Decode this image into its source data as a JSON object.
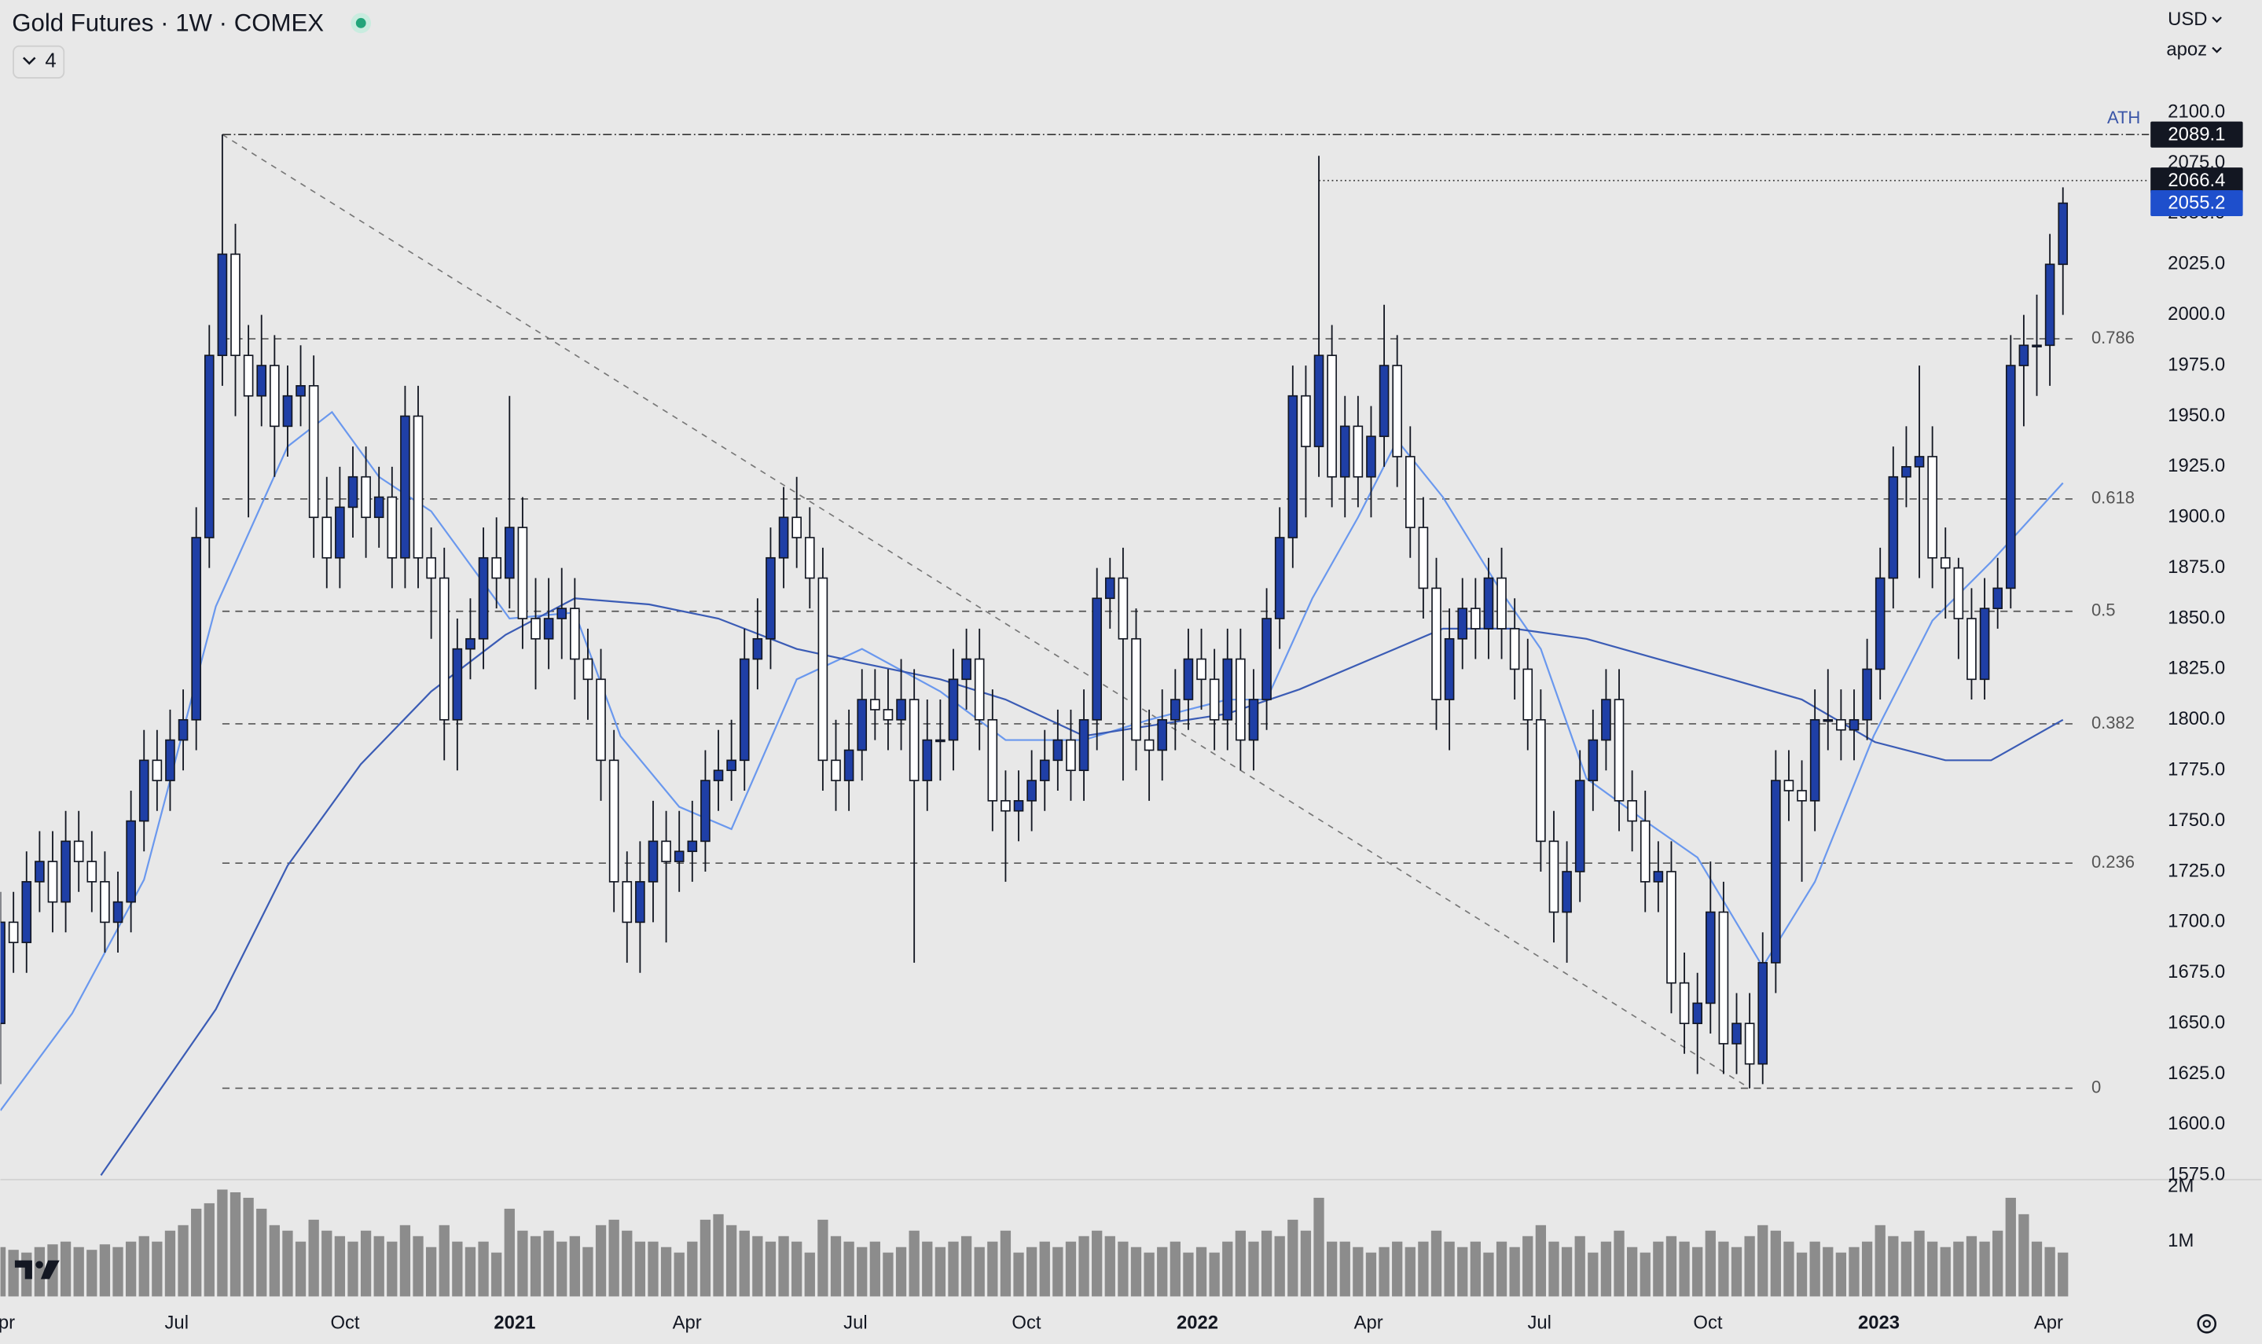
{
  "chart_data": {
    "type": "candlestick",
    "title": "Gold Futures · 1W · COMEX",
    "indicator_count": 4,
    "currency": "USD",
    "axis_menu": "apoz",
    "up_color": "#1f3fa6",
    "down_color": "#ffffff",
    "open": [
      1650,
      1700,
      1690,
      1720,
      1730,
      1710,
      1740,
      1730,
      1720,
      1700,
      1710,
      1750,
      1780,
      1770,
      1790,
      1800,
      1890,
      1980,
      2030,
      1980,
      1960,
      1975,
      1945,
      1960,
      1965,
      1900,
      1880,
      1905,
      1920,
      1900,
      1910,
      1880,
      1950,
      1880,
      1870,
      1800,
      1835,
      1840,
      1880,
      1870,
      1895,
      1850,
      1840,
      1850,
      1855,
      1830,
      1820,
      1780,
      1720,
      1700,
      1720,
      1740,
      1730,
      1735,
      1740,
      1770,
      1775,
      1780,
      1830,
      1840,
      1880,
      1900,
      1890,
      1870,
      1780,
      1770,
      1785,
      1810,
      1805,
      1800,
      1810,
      1770,
      1790,
      1790,
      1820,
      1830,
      1800,
      1760,
      1755,
      1760,
      1770,
      1780,
      1790,
      1775,
      1800,
      1860,
      1870,
      1840,
      1790,
      1785,
      1800,
      1810,
      1830,
      1820,
      1800,
      1830,
      1790,
      1810,
      1850,
      1890,
      1960,
      1935,
      1980,
      1920,
      1945,
      1920,
      1940,
      1975,
      1930,
      1895,
      1865,
      1810,
      1840,
      1855,
      1845,
      1870,
      1845,
      1825,
      1800,
      1740,
      1705,
      1725,
      1770,
      1790,
      1810,
      1760,
      1750,
      1720,
      1725,
      1670,
      1650,
      1660,
      1705,
      1640,
      1650,
      1630,
      1680,
      1770,
      1765,
      1760,
      1800,
      1800,
      1795,
      1800,
      1825,
      1870,
      1920,
      1925,
      1930,
      1880,
      1875,
      1850,
      1820,
      1855,
      1865,
      1975,
      1985,
      1985,
      2025
    ],
    "high": [
      1715,
      1715,
      1735,
      1745,
      1745,
      1755,
      1755,
      1745,
      1735,
      1725,
      1765,
      1795,
      1795,
      1805,
      1815,
      1905,
      1995,
      2089.1,
      2045,
      1995,
      2000,
      1990,
      1975,
      1985,
      1980,
      1920,
      1925,
      1935,
      1935,
      1925,
      1925,
      1965,
      1965,
      1895,
      1885,
      1850,
      1860,
      1895,
      1900,
      1960,
      1910,
      1870,
      1870,
      1875,
      1870,
      1845,
      1835,
      1795,
      1735,
      1740,
      1760,
      1755,
      1755,
      1760,
      1785,
      1795,
      1800,
      1845,
      1860,
      1895,
      1915,
      1920,
      1905,
      1885,
      1800,
      1805,
      1825,
      1825,
      1825,
      1830,
      1825,
      1810,
      1810,
      1835,
      1845,
      1845,
      1815,
      1775,
      1775,
      1785,
      1795,
      1805,
      1805,
      1815,
      1875,
      1880,
      1885,
      1855,
      1805,
      1815,
      1825,
      1845,
      1845,
      1835,
      1845,
      1845,
      1825,
      1865,
      1905,
      1975,
      1975,
      2078.6,
      1995,
      1960,
      1960,
      1955,
      2005,
      1990,
      1945,
      1910,
      1880,
      1855,
      1870,
      1870,
      1880,
      1885,
      1860,
      1840,
      1815,
      1755,
      1740,
      1785,
      1805,
      1825,
      1825,
      1775,
      1765,
      1740,
      1740,
      1685,
      1675,
      1730,
      1720,
      1665,
      1665,
      1695,
      1785,
      1785,
      1780,
      1815,
      1825,
      1815,
      1815,
      1840,
      1885,
      1935,
      1945,
      1975,
      1945,
      1895,
      1880,
      1865,
      1870,
      1880,
      1990,
      2000,
      2010,
      2040,
      2063
    ],
    "low": [
      1620,
      1675,
      1675,
      1705,
      1695,
      1695,
      1715,
      1705,
      1685,
      1685,
      1695,
      1735,
      1755,
      1755,
      1775,
      1785,
      1875,
      1965,
      1950,
      1900,
      1945,
      1920,
      1930,
      1945,
      1880,
      1865,
      1865,
      1890,
      1880,
      1885,
      1865,
      1865,
      1865,
      1840,
      1780,
      1775,
      1820,
      1825,
      1855,
      1855,
      1835,
      1815,
      1825,
      1830,
      1810,
      1800,
      1760,
      1705,
      1680,
      1675,
      1700,
      1690,
      1715,
      1720,
      1725,
      1755,
      1760,
      1765,
      1815,
      1825,
      1865,
      1875,
      1855,
      1765,
      1755,
      1755,
      1770,
      1790,
      1785,
      1785,
      1680,
      1755,
      1770,
      1775,
      1805,
      1785,
      1745,
      1720,
      1740,
      1745,
      1755,
      1765,
      1760,
      1760,
      1785,
      1845,
      1770,
      1775,
      1760,
      1770,
      1785,
      1795,
      1805,
      1785,
      1785,
      1775,
      1775,
      1795,
      1835,
      1875,
      1900,
      1920,
      1905,
      1900,
      1905,
      1900,
      1925,
      1915,
      1880,
      1850,
      1795,
      1785,
      1825,
      1830,
      1830,
      1830,
      1810,
      1785,
      1725,
      1690,
      1680,
      1710,
      1755,
      1775,
      1745,
      1735,
      1705,
      1705,
      1655,
      1635,
      1625,
      1645,
      1625,
      1625,
      1618,
      1620,
      1665,
      1750,
      1720,
      1745,
      1785,
      1780,
      1780,
      1790,
      1810,
      1855,
      1905,
      1870,
      1865,
      1850,
      1830,
      1810,
      1810,
      1845,
      1855,
      1945,
      1960,
      1965,
      2000
    ],
    "close": [
      1700,
      1690,
      1720,
      1730,
      1710,
      1740,
      1730,
      1720,
      1700,
      1710,
      1750,
      1780,
      1770,
      1790,
      1800,
      1890,
      1980,
      2030,
      1980,
      1960,
      1975,
      1945,
      1960,
      1965,
      1900,
      1880,
      1905,
      1920,
      1900,
      1910,
      1880,
      1950,
      1880,
      1870,
      1800,
      1835,
      1840,
      1880,
      1870,
      1895,
      1850,
      1840,
      1850,
      1855,
      1830,
      1820,
      1780,
      1720,
      1700,
      1720,
      1740,
      1730,
      1735,
      1740,
      1770,
      1775,
      1780,
      1830,
      1840,
      1880,
      1900,
      1890,
      1870,
      1780,
      1770,
      1785,
      1810,
      1805,
      1800,
      1810,
      1770,
      1790,
      1790,
      1820,
      1830,
      1800,
      1760,
      1755,
      1760,
      1770,
      1780,
      1790,
      1775,
      1800,
      1860,
      1870,
      1840,
      1790,
      1785,
      1800,
      1810,
      1830,
      1820,
      1800,
      1830,
      1790,
      1810,
      1850,
      1890,
      1960,
      1935,
      1980,
      1920,
      1945,
      1920,
      1940,
      1975,
      1930,
      1895,
      1865,
      1810,
      1840,
      1855,
      1845,
      1870,
      1845,
      1825,
      1800,
      1740,
      1705,
      1725,
      1770,
      1790,
      1810,
      1760,
      1750,
      1720,
      1725,
      1670,
      1650,
      1660,
      1705,
      1640,
      1650,
      1630,
      1680,
      1770,
      1765,
      1760,
      1800,
      1800,
      1795,
      1800,
      1825,
      1870,
      1920,
      1925,
      1930,
      1880,
      1875,
      1850,
      1820,
      1855,
      1865,
      1975,
      1985,
      1985,
      2025,
      2055.2
    ],
    "xlim": [
      0,
      164.6
    ],
    "xticks": [
      {
        "value": 0,
        "label": "Apr"
      },
      {
        "value": 13.5,
        "label": "Jul"
      },
      {
        "value": 26.4,
        "label": "Oct"
      },
      {
        "value": 39.4,
        "label": "2021"
      },
      {
        "value": 52.6,
        "label": "Apr"
      },
      {
        "value": 65.5,
        "label": "Jul"
      },
      {
        "value": 78.6,
        "label": "Oct"
      },
      {
        "value": 91.7,
        "label": "2022"
      },
      {
        "value": 104.8,
        "label": "Apr"
      },
      {
        "value": 117.9,
        "label": "Jul"
      },
      {
        "value": 130.8,
        "label": "Oct"
      },
      {
        "value": 143.9,
        "label": "2023"
      },
      {
        "value": 156.9,
        "label": "Apr"
      }
    ],
    "ylim": [
      1575,
      2100
    ],
    "yticks": [
      {
        "value": 1575,
        "label": "1575.0"
      },
      {
        "value": 1600,
        "label": "1600.0"
      },
      {
        "value": 1625,
        "label": "1625.0"
      },
      {
        "value": 1650,
        "label": "1650.0"
      },
      {
        "value": 1675,
        "label": "1675.0"
      },
      {
        "value": 1700,
        "label": "1700.0"
      },
      {
        "value": 1725,
        "label": "1725.0"
      },
      {
        "value": 1750,
        "label": "1750.0"
      },
      {
        "value": 1775,
        "label": "1775.0"
      },
      {
        "value": 1800,
        "label": "1800.0"
      },
      {
        "value": 1825,
        "label": "1825.0"
      },
      {
        "value": 1850,
        "label": "1850.0"
      },
      {
        "value": 1875,
        "label": "1875.0"
      },
      {
        "value": 1900,
        "label": "1900.0"
      },
      {
        "value": 1925,
        "label": "1925.0"
      },
      {
        "value": 1950,
        "label": "1950.0"
      },
      {
        "value": 1975,
        "label": "1975.0"
      },
      {
        "value": 2000,
        "label": "2000.0"
      },
      {
        "value": 2025,
        "label": "2025.0"
      },
      {
        "value": 2050,
        "label": "2050.0"
      },
      {
        "value": 2075,
        "label": "2075.0"
      },
      {
        "value": 2100,
        "label": "2100.0"
      }
    ],
    "volume": {
      "color": "#8c8c8c",
      "ylim": [
        0,
        2000000
      ],
      "yticks": [
        {
          "value": 1000000,
          "label": "1M"
        },
        {
          "value": 2000000,
          "label": "2M"
        }
      ],
      "values": [
        900000,
        850000,
        800000,
        900000,
        950000,
        1000000,
        900000,
        850000,
        950000,
        900000,
        1000000,
        1100000,
        1000000,
        1200000,
        1300000,
        1600000,
        1700000,
        1950000,
        1900000,
        1800000,
        1600000,
        1300000,
        1200000,
        1000000,
        1400000,
        1200000,
        1100000,
        1000000,
        1200000,
        1100000,
        1000000,
        1300000,
        1100000,
        900000,
        1300000,
        1000000,
        900000,
        1000000,
        800000,
        1600000,
        1200000,
        1100000,
        1200000,
        1000000,
        1100000,
        900000,
        1300000,
        1400000,
        1200000,
        1000000,
        1000000,
        900000,
        800000,
        1000000,
        1400000,
        1500000,
        1300000,
        1200000,
        1100000,
        1000000,
        1100000,
        1000000,
        800000,
        1400000,
        1100000,
        1000000,
        900000,
        1000000,
        800000,
        900000,
        1200000,
        1000000,
        900000,
        1000000,
        1100000,
        900000,
        1000000,
        1200000,
        800000,
        900000,
        1000000,
        900000,
        1000000,
        1100000,
        1200000,
        1100000,
        1000000,
        900000,
        800000,
        900000,
        1000000,
        800000,
        900000,
        800000,
        1000000,
        1200000,
        1000000,
        1200000,
        1100000,
        1400000,
        1200000,
        1800000,
        1000000,
        1000000,
        900000,
        800000,
        900000,
        1000000,
        900000,
        1000000,
        1200000,
        1000000,
        900000,
        1000000,
        800000,
        1000000,
        900000,
        1100000,
        1300000,
        1000000,
        900000,
        1100000,
        800000,
        1000000,
        1200000,
        900000,
        800000,
        1000000,
        1100000,
        1000000,
        900000,
        1200000,
        1000000,
        900000,
        1100000,
        1300000,
        1200000,
        1000000,
        800000,
        1000000,
        900000,
        800000,
        900000,
        1000000,
        1300000,
        1100000,
        1000000,
        1200000,
        1000000,
        900000,
        1000000,
        1100000,
        1000000,
        1200000,
        1800000,
        1500000,
        1000000,
        900000,
        800000
      ]
    },
    "fib_levels": [
      {
        "ratio": 0.786,
        "price": 1988.2
      },
      {
        "ratio": 0.618,
        "price": 1909.1
      },
      {
        "ratio": 0.5,
        "price": 1853.6
      },
      {
        "ratio": 0.382,
        "price": 1798.0
      },
      {
        "ratio": 0.236,
        "price": 1729.2
      },
      {
        "ratio": 0,
        "price": 1618
      }
    ],
    "fib_start": 17,
    "ath": {
      "label": "ATH",
      "price": 2089.1,
      "start": 17
    },
    "resistance": {
      "price": 2066.4,
      "start": 101
    },
    "trendline": {
      "x": [
        17,
        134
      ],
      "values": [
        2089.1,
        1618
      ]
    },
    "moving_averages": [
      {
        "color": "#6a98ee",
        "x": [
          0,
          5.5,
          11,
          16.5,
          22,
          25.4,
          29,
          33,
          39,
          44,
          47.5,
          52,
          56,
          61,
          66,
          72,
          77,
          83,
          88,
          94,
          97,
          100.5,
          104,
          107,
          110.5,
          115,
          118,
          121.5,
          126,
          130,
          135,
          139,
          143.5,
          148,
          152.5,
          158
        ],
        "values": [
          1607,
          1655,
          1721,
          1856,
          1935,
          1952,
          1920,
          1903,
          1850,
          1853,
          1792,
          1757,
          1746,
          1820,
          1835,
          1814,
          1790,
          1790,
          1800,
          1810,
          1810,
          1860,
          1900,
          1938,
          1910,
          1863,
          1835,
          1771,
          1750,
          1732,
          1678,
          1720,
          1792,
          1849,
          1878,
          1917
        ]
      },
      {
        "color": "#3b5cb5",
        "x": [
          7.7,
          16.5,
          22,
          27.6,
          33,
          38.7,
          44,
          49.7,
          55,
          61,
          66,
          72,
          77,
          83,
          88,
          94,
          99.5,
          105,
          110.5,
          116,
          121.5,
          127,
          132.6,
          138,
          143.6,
          149,
          152.5,
          158
        ],
        "values": [
          1575,
          1657,
          1728,
          1778,
          1814,
          1842,
          1860,
          1857,
          1850,
          1835,
          1828,
          1820,
          1810,
          1792,
          1797,
          1803,
          1815,
          1830,
          1845,
          1845,
          1840,
          1830,
          1820,
          1810,
          1789,
          1780,
          1780,
          1800
        ]
      }
    ]
  }
}
